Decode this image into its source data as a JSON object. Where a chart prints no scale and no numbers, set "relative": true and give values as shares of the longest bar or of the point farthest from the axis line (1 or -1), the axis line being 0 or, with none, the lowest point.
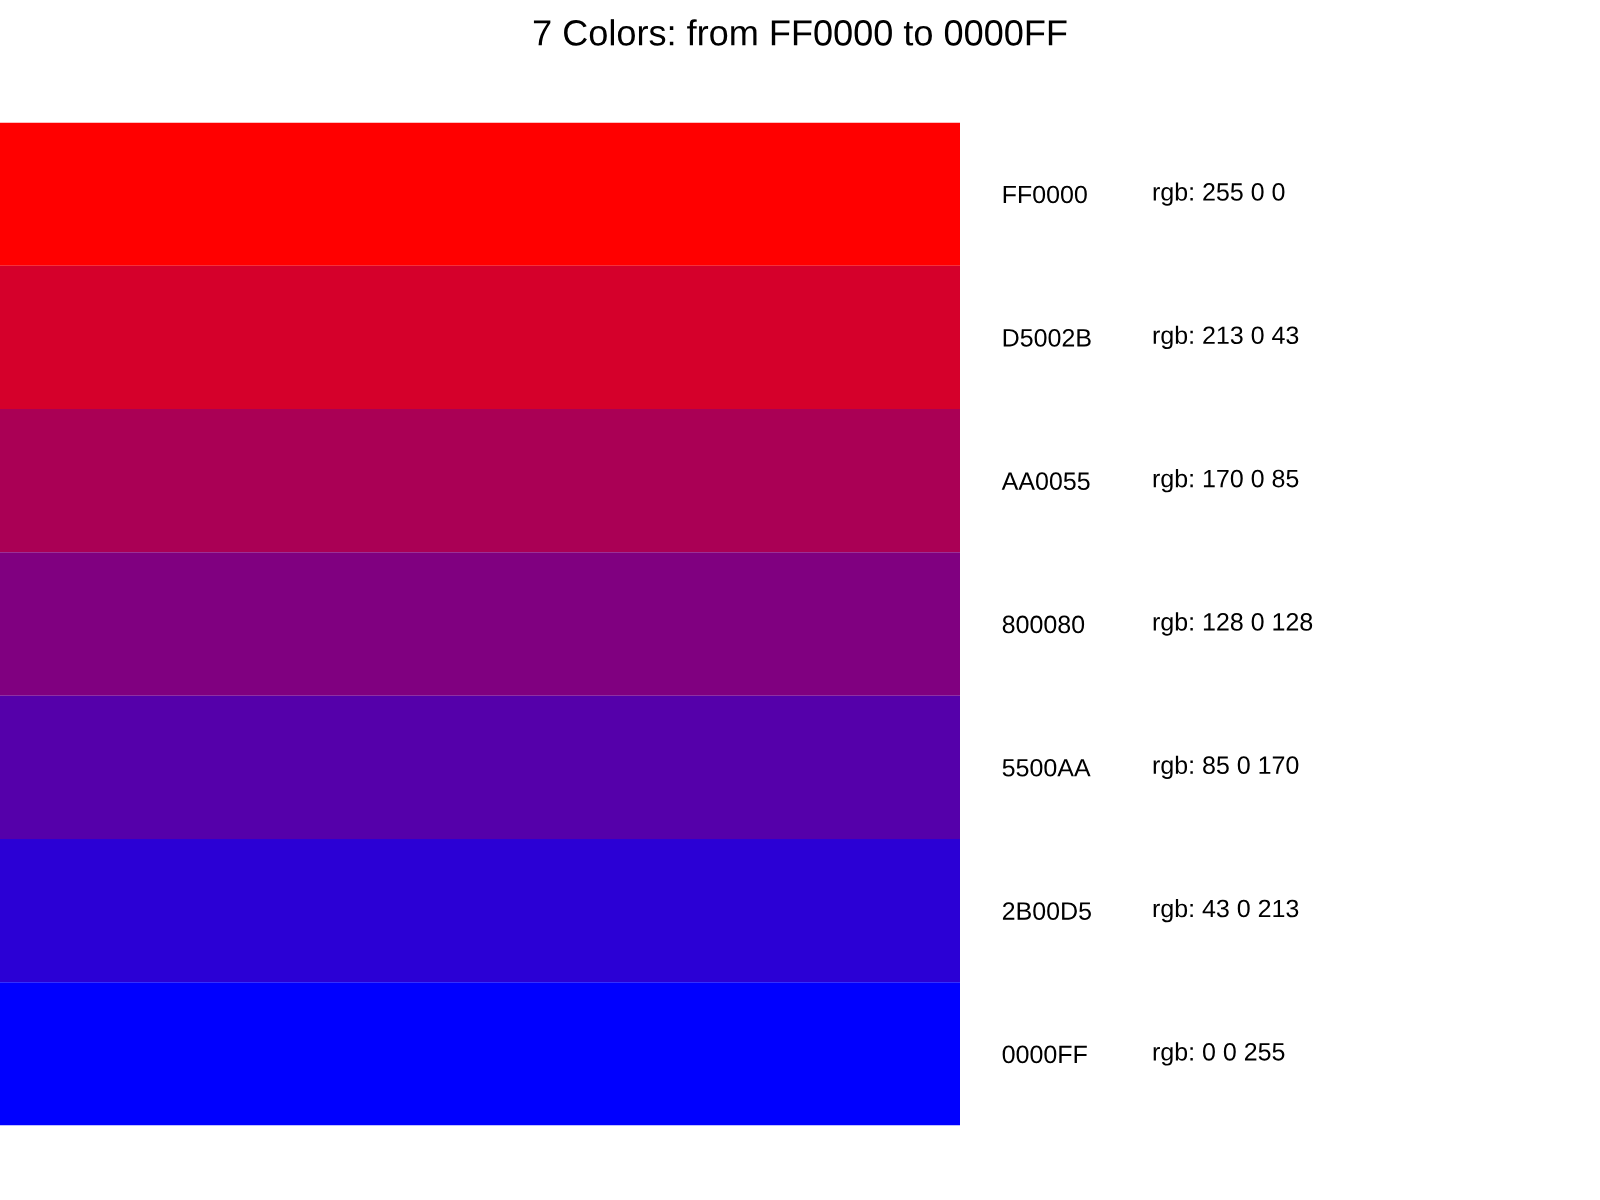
{
  "chart_data": {
    "type": "bar",
    "orientation": "horizontal",
    "relative": true,
    "title": "7 Colors: from FF0000 to 0000FF",
    "categories": [
      "FF0000",
      "D5002B",
      "AA0055",
      "800080",
      "5500AA",
      "2B00D5",
      "0000FF"
    ],
    "values": [
      1,
      1,
      1,
      1,
      1,
      1,
      1
    ],
    "colors": [
      "#ff0000",
      "#d5002b",
      "#aa0055",
      "#800080",
      "#5500aa",
      "#2b00d5",
      "#0000ff"
    ],
    "annotations": [
      "rgb: 255 0 0",
      "rgb: 213 0 43",
      "rgb: 170 0 85",
      "rgb: 128 0 128",
      "rgb: 85 0 170",
      "rgb: 43 0 213",
      "rgb: 0 0 255"
    ],
    "grid": false,
    "legend": false
  }
}
